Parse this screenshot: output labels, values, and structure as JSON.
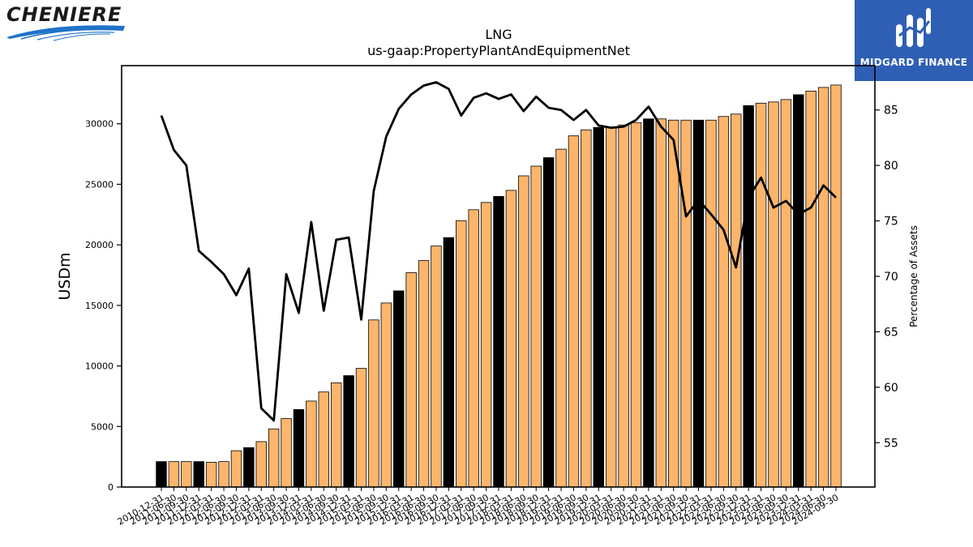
{
  "branding": {
    "left_logo": "CHENIERE",
    "right_logo": "MIDGARD FINANCE"
  },
  "colors": {
    "bar_orange": "#fdb56b",
    "bar_black": "#000000",
    "line": "#000000",
    "right_brand_bg": "#2f5fb4",
    "left_brand_swoosh": "#1f73c8"
  },
  "chart_data": {
    "type": "bar",
    "title": "LNG",
    "subtitle": "us-gaap:PropertyPlantAndEquipmentNet",
    "ylabel": "USDm",
    "y2label": "Percentage of Assets",
    "ylim": [
      0,
      34800
    ],
    "y2lim": [
      51,
      89
    ],
    "yticks": [
      0,
      5000,
      10000,
      15000,
      20000,
      25000,
      30000
    ],
    "y2ticks": [
      55,
      60,
      65,
      70,
      75,
      80,
      85
    ],
    "categories": [
      "2010-12-31",
      "2011-06-30",
      "2011-09-30",
      "2011-12-31",
      "2012-03-31",
      "2012-06-30",
      "2012-09-30",
      "2012-12-31",
      "2013-03-31",
      "2013-06-30",
      "2013-09-30",
      "2013-12-31",
      "2014-03-31",
      "2014-06-30",
      "2014-09-30",
      "2014-12-31",
      "2015-03-31",
      "2015-06-30",
      "2015-09-30",
      "2015-12-31",
      "2016-03-31",
      "2016-06-30",
      "2016-09-30",
      "2016-12-31",
      "2017-03-31",
      "2017-06-30",
      "2017-09-30",
      "2017-12-31",
      "2018-03-31",
      "2018-06-30",
      "2018-09-30",
      "2018-12-31",
      "2019-03-31",
      "2019-06-30",
      "2019-09-30",
      "2019-12-31",
      "2020-03-31",
      "2020-06-30",
      "2020-09-30",
      "2020-12-31",
      "2021-03-31",
      "2021-06-30",
      "2021-09-30",
      "2021-12-31",
      "2022-03-31",
      "2022-06-30",
      "2022-09-30",
      "2022-12-31",
      "2023-03-31",
      "2023-06-30",
      "2023-09-30",
      "2023-12-31",
      "2024-03-31",
      "2024-06-30",
      "2024-09-30"
    ],
    "series": [
      {
        "name": "",
        "kind": "bar",
        "values": [
          2100,
          2100,
          2100,
          2100,
          2050,
          2100,
          3000,
          3250,
          3750,
          4800,
          5650,
          6400,
          7100,
          7850,
          8600,
          9200,
          9800,
          13800,
          15200,
          16200,
          17700,
          18700,
          19900,
          20600,
          22000,
          22900,
          23500,
          24000,
          24500,
          25700,
          26500,
          27200,
          27900,
          29000,
          29500,
          29700,
          29700,
          29900,
          30100,
          30400,
          30400,
          30300,
          30300,
          30300,
          30300,
          30600,
          30800,
          31500,
          31700,
          31800,
          32000,
          32400,
          32700,
          33000,
          33200
        ],
        "highlight_black": [
          true,
          false,
          false,
          true,
          false,
          false,
          false,
          true,
          false,
          false,
          false,
          true,
          false,
          false,
          false,
          true,
          false,
          false,
          false,
          true,
          false,
          false,
          false,
          true,
          false,
          false,
          false,
          true,
          false,
          false,
          false,
          true,
          false,
          false,
          false,
          true,
          false,
          false,
          false,
          true,
          false,
          false,
          false,
          true,
          false,
          false,
          false,
          true,
          false,
          false,
          false,
          true,
          false,
          false,
          false
        ]
      },
      {
        "name": "",
        "kind": "line",
        "axis": "right",
        "values": [
          84.5,
          81.4,
          80.0,
          72.3,
          71.3,
          70.2,
          68.3,
          70.7,
          58.1,
          57.0,
          70.2,
          66.7,
          74.9,
          66.9,
          73.3,
          73.5,
          66.1,
          77.7,
          82.6,
          85.1,
          86.4,
          87.2,
          87.5,
          86.9,
          84.5,
          86.1,
          86.5,
          86.0,
          86.4,
          84.9,
          86.2,
          85.2,
          85.0,
          84.1,
          85.0,
          83.6,
          83.4,
          83.5,
          84.1,
          85.3,
          83.5,
          82.3,
          75.4,
          76.9,
          75.6,
          74.2,
          70.8,
          77.1,
          78.9,
          76.2,
          76.8,
          75.6,
          76.2,
          78.2,
          77.1
        ]
      }
    ],
    "grid": false,
    "legend": "none"
  }
}
